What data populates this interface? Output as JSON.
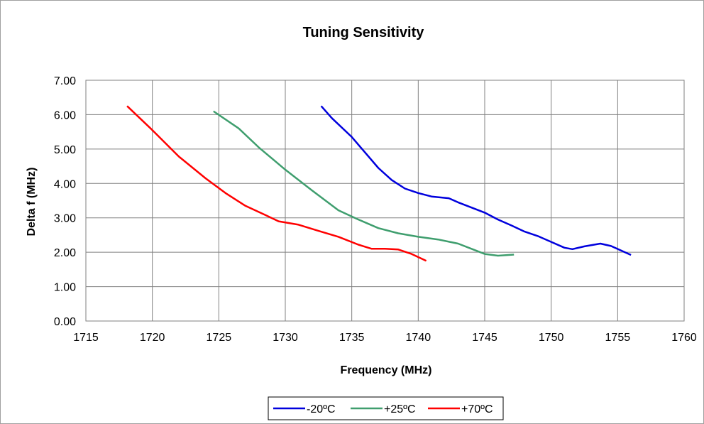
{
  "chart_data": {
    "type": "line",
    "title": "Tuning Sensitivity",
    "xlabel": "Frequency (MHz)",
    "ylabel": "Delta f (MHz)",
    "xlim": [
      1715,
      1760
    ],
    "ylim": [
      0,
      7
    ],
    "xticks": [
      "1715",
      "1720",
      "1725",
      "1730",
      "1735",
      "1740",
      "1745",
      "1750",
      "1755",
      "1760"
    ],
    "yticks": [
      "0.00",
      "1.00",
      "2.00",
      "3.00",
      "4.00",
      "5.00",
      "6.00",
      "7.00"
    ],
    "grid": true,
    "legend_position": "bottom",
    "series": [
      {
        "name": "-20ºC",
        "color": "#0000dd",
        "x": [
          1732.7,
          1733.5,
          1735,
          1736,
          1737,
          1738,
          1739,
          1740,
          1741,
          1742.3,
          1743,
          1744,
          1745,
          1746,
          1747,
          1748,
          1749,
          1750,
          1751,
          1751.6,
          1752.5,
          1753.7,
          1754.5,
          1756
        ],
        "y": [
          6.25,
          5.9,
          5.35,
          4.9,
          4.45,
          4.1,
          3.85,
          3.72,
          3.62,
          3.57,
          3.45,
          3.3,
          3.15,
          2.95,
          2.78,
          2.6,
          2.47,
          2.3,
          2.13,
          2.09,
          2.17,
          2.25,
          2.18,
          1.92
        ]
      },
      {
        "name": "+25ºC",
        "color": "#3f9e6e",
        "x": [
          1724.6,
          1726.5,
          1728,
          1730,
          1732,
          1734,
          1735.5,
          1737,
          1738.5,
          1740,
          1741.5,
          1743,
          1744,
          1745,
          1746,
          1747.2
        ],
        "y": [
          6.1,
          5.6,
          5.05,
          4.4,
          3.8,
          3.22,
          2.95,
          2.7,
          2.55,
          2.45,
          2.37,
          2.25,
          2.1,
          1.95,
          1.9,
          1.93
        ]
      },
      {
        "name": "+70ºC",
        "color": "#ff0000",
        "x": [
          1718.1,
          1720,
          1722,
          1724,
          1725.5,
          1727,
          1728.5,
          1729.5,
          1731,
          1732.5,
          1734,
          1735.5,
          1736.5,
          1737.5,
          1738.5,
          1739.5,
          1740.6
        ],
        "y": [
          6.25,
          5.55,
          4.78,
          4.15,
          3.72,
          3.35,
          3.08,
          2.9,
          2.8,
          2.62,
          2.45,
          2.22,
          2.1,
          2.1,
          2.08,
          1.95,
          1.75
        ]
      }
    ]
  }
}
